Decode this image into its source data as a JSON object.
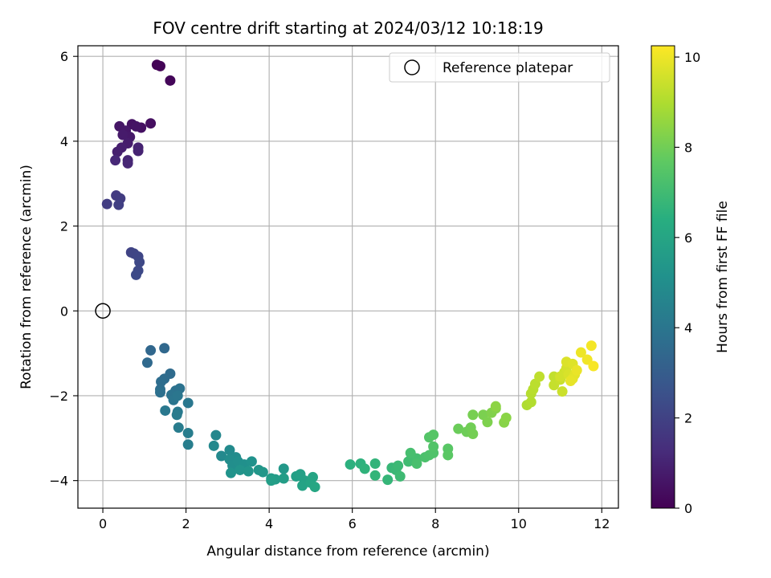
{
  "chart_data": {
    "type": "scatter",
    "title": "FOV centre drift starting at 2024/03/12 10:18:19",
    "xlabel": "Angular distance from reference (arcmin)",
    "ylabel": "Rotation from reference (arcmin)",
    "xlim": [
      -0.6,
      12.4
    ],
    "ylim": [
      -4.65,
      6.25
    ],
    "xticks": [
      0,
      2,
      4,
      6,
      8,
      10,
      12
    ],
    "yticks": [
      -4,
      -2,
      0,
      2,
      4,
      6
    ],
    "grid": true,
    "legend": {
      "placement": "top-right",
      "entries": [
        "Reference platepar"
      ]
    },
    "reference_point": {
      "x": 0,
      "y": 0
    },
    "colorbar": {
      "label": "Hours from first FF file",
      "range": [
        0,
        10.25
      ],
      "ticks": [
        0,
        2,
        4,
        6,
        8,
        10
      ],
      "colormap": "viridis"
    },
    "points": [
      [
        1.3,
        5.8,
        0.05
      ],
      [
        1.38,
        5.77,
        0.1
      ],
      [
        1.62,
        5.43,
        0.15
      ],
      [
        1.15,
        4.42,
        0.4
      ],
      [
        0.92,
        4.32,
        0.45
      ],
      [
        0.7,
        4.4,
        0.5
      ],
      [
        0.8,
        4.35,
        0.55
      ],
      [
        0.4,
        4.35,
        0.6
      ],
      [
        0.55,
        4.25,
        0.65
      ],
      [
        0.65,
        4.1,
        0.7
      ],
      [
        0.48,
        4.15,
        0.75
      ],
      [
        0.6,
        3.95,
        0.8
      ],
      [
        0.45,
        3.85,
        0.85
      ],
      [
        0.35,
        3.75,
        0.9
      ],
      [
        0.85,
        3.85,
        0.95
      ],
      [
        0.85,
        3.77,
        1.0
      ],
      [
        0.6,
        3.55,
        1.05
      ],
      [
        0.6,
        3.48,
        1.1
      ],
      [
        0.3,
        3.55,
        1.15
      ],
      [
        0.32,
        2.72,
        1.75
      ],
      [
        0.42,
        2.65,
        1.8
      ],
      [
        0.1,
        2.52,
        1.85
      ],
      [
        0.38,
        2.5,
        1.9
      ],
      [
        0.68,
        1.38,
        2.05
      ],
      [
        0.75,
        1.35,
        2.1
      ],
      [
        0.85,
        1.28,
        2.15
      ],
      [
        0.88,
        1.15,
        2.2
      ],
      [
        0.85,
        0.95,
        2.25
      ],
      [
        0.8,
        0.85,
        2.3
      ],
      [
        1.15,
        -0.93,
        3.4
      ],
      [
        1.48,
        -0.88,
        3.45
      ],
      [
        1.07,
        -1.22,
        3.5
      ],
      [
        1.62,
        -1.48,
        3.55
      ],
      [
        1.48,
        -1.6,
        3.6
      ],
      [
        1.4,
        -1.67,
        3.65
      ],
      [
        1.38,
        -1.85,
        3.7
      ],
      [
        1.38,
        -1.92,
        3.75
      ],
      [
        1.75,
        -1.88,
        3.8
      ],
      [
        1.85,
        -1.83,
        3.85
      ],
      [
        1.65,
        -1.98,
        3.9
      ],
      [
        1.7,
        -2.1,
        3.95
      ],
      [
        1.8,
        -2.0,
        4.0
      ],
      [
        2.05,
        -2.17,
        4.05
      ],
      [
        1.5,
        -2.35,
        4.1
      ],
      [
        1.8,
        -2.38,
        4.15
      ],
      [
        1.78,
        -2.45,
        4.2
      ],
      [
        1.82,
        -2.75,
        4.25
      ],
      [
        2.05,
        -2.88,
        4.3
      ],
      [
        2.05,
        -3.15,
        4.35
      ],
      [
        2.72,
        -2.93,
        4.7
      ],
      [
        2.67,
        -3.18,
        4.75
      ],
      [
        2.85,
        -3.42,
        4.8
      ],
      [
        3.05,
        -3.28,
        4.85
      ],
      [
        3.2,
        -3.45,
        4.9
      ],
      [
        3.05,
        -3.5,
        4.95
      ],
      [
        3.12,
        -3.65,
        5.0
      ],
      [
        3.25,
        -3.55,
        5.05
      ],
      [
        3.4,
        -3.62,
        5.1
      ],
      [
        3.58,
        -3.55,
        5.15
      ],
      [
        3.08,
        -3.82,
        5.2
      ],
      [
        3.3,
        -3.75,
        5.25
      ],
      [
        3.5,
        -3.78,
        5.3
      ],
      [
        3.75,
        -3.75,
        5.35
      ],
      [
        3.85,
        -3.8,
        5.4
      ],
      [
        4.35,
        -3.72,
        5.45
      ],
      [
        4.05,
        -3.95,
        5.55
      ],
      [
        4.15,
        -3.97,
        5.6
      ],
      [
        4.35,
        -3.95,
        5.65
      ],
      [
        4.05,
        -4.0,
        5.7
      ],
      [
        4.65,
        -3.9,
        5.75
      ],
      [
        4.75,
        -3.85,
        5.8
      ],
      [
        4.85,
        -4.0,
        5.85
      ],
      [
        4.8,
        -4.12,
        5.9
      ],
      [
        5.05,
        -3.92,
        5.95
      ],
      [
        5.0,
        -4.05,
        6.0
      ],
      [
        5.1,
        -4.15,
        6.05
      ],
      [
        5.95,
        -3.62,
        6.5
      ],
      [
        6.2,
        -3.6,
        6.55
      ],
      [
        6.3,
        -3.72,
        6.6
      ],
      [
        6.55,
        -3.6,
        6.65
      ],
      [
        6.55,
        -3.88,
        6.7
      ],
      [
        6.85,
        -3.98,
        6.75
      ],
      [
        6.95,
        -3.7,
        6.8
      ],
      [
        7.05,
        -3.75,
        6.85
      ],
      [
        7.1,
        -3.65,
        6.9
      ],
      [
        7.15,
        -3.9,
        6.95
      ],
      [
        7.35,
        -3.55,
        7.0
      ],
      [
        7.45,
        -3.45,
        7.05
      ],
      [
        7.55,
        -3.48,
        7.1
      ],
      [
        7.4,
        -3.35,
        7.15
      ],
      [
        7.55,
        -3.6,
        7.2
      ],
      [
        7.75,
        -3.45,
        7.25
      ],
      [
        7.85,
        -3.4,
        7.3
      ],
      [
        7.95,
        -3.35,
        7.35
      ],
      [
        7.95,
        -3.2,
        7.4
      ],
      [
        7.85,
        -2.98,
        7.45
      ],
      [
        7.95,
        -2.92,
        7.5
      ],
      [
        8.3,
        -3.25,
        7.55
      ],
      [
        8.3,
        -3.4,
        7.6
      ],
      [
        8.55,
        -2.78,
        7.9
      ],
      [
        8.75,
        -2.85,
        7.95
      ],
      [
        8.85,
        -2.75,
        8.0
      ],
      [
        8.9,
        -2.9,
        8.05
      ],
      [
        8.9,
        -2.45,
        8.1
      ],
      [
        9.15,
        -2.45,
        8.15
      ],
      [
        9.25,
        -2.62,
        8.2
      ],
      [
        9.35,
        -2.4,
        8.25
      ],
      [
        9.45,
        -2.3,
        8.3
      ],
      [
        9.65,
        -2.63,
        8.35
      ],
      [
        9.7,
        -2.52,
        8.4
      ],
      [
        9.45,
        -2.25,
        8.45
      ],
      [
        10.2,
        -2.22,
        9.0
      ],
      [
        10.3,
        -2.15,
        9.05
      ],
      [
        10.3,
        -1.95,
        9.1
      ],
      [
        10.35,
        -1.85,
        9.15
      ],
      [
        10.4,
        -1.72,
        9.2
      ],
      [
        10.5,
        -1.55,
        9.25
      ],
      [
        10.85,
        -1.55,
        9.3
      ],
      [
        10.85,
        -1.75,
        9.35
      ],
      [
        11.0,
        -1.62,
        9.4
      ],
      [
        11.05,
        -1.9,
        9.45
      ],
      [
        11.1,
        -1.45,
        9.5
      ],
      [
        11.0,
        -1.55,
        9.55
      ],
      [
        11.15,
        -1.35,
        9.6
      ],
      [
        11.2,
        -1.5,
        9.65
      ],
      [
        11.15,
        -1.2,
        9.7
      ],
      [
        11.3,
        -1.25,
        9.75
      ],
      [
        11.35,
        -1.5,
        9.8
      ],
      [
        11.3,
        -1.6,
        9.85
      ],
      [
        11.25,
        -1.65,
        9.9
      ],
      [
        11.4,
        -1.4,
        9.95
      ],
      [
        11.5,
        -0.98,
        10.0
      ],
      [
        11.65,
        -1.15,
        10.05
      ],
      [
        11.75,
        -0.82,
        10.1
      ],
      [
        11.8,
        -1.3,
        10.15
      ]
    ]
  }
}
